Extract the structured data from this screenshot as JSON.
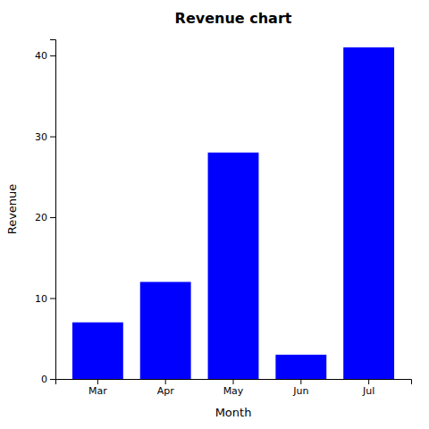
{
  "chart_data": {
    "type": "bar",
    "title": "Revenue chart",
    "x_label": "Month",
    "y_label": "Revenue",
    "categories": [
      "Mar",
      "Apr",
      "May",
      "Jun",
      "Jul"
    ],
    "values": [
      7,
      12,
      28,
      3,
      41
    ],
    "color": "#0000FF",
    "ylim": [
      0,
      42
    ],
    "yticks": [
      0,
      10,
      20,
      30,
      40
    ],
    "grid": false
  }
}
